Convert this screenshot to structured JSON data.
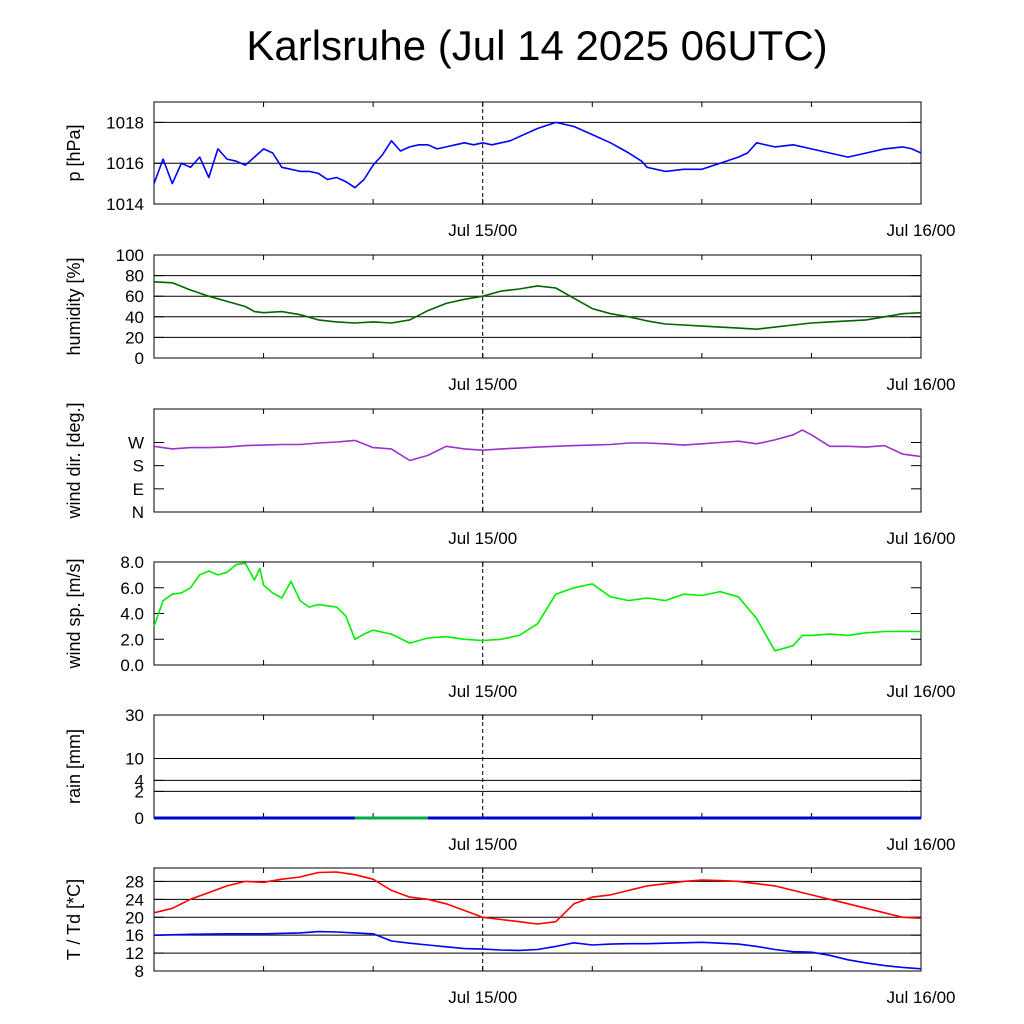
{
  "title": "Karlsruhe (Jul 14 2025 06UTC)",
  "x_axis": {
    "start": "Jul 14 2025 06:00 UTC",
    "end": "Jul 16 2025 00:00 UTC",
    "tick_labels": [
      "Jul 15/00",
      "Jul 16/00"
    ],
    "minor_ticks_hours": 6
  },
  "colors": {
    "pressure": "#0000ff",
    "humidity": "#006400",
    "wind_direction": "#9933cc",
    "wind_speed": "#00ee00",
    "rain": "#0000cc",
    "rain_alt": "#00aa44",
    "temperature": "#ff0000",
    "dewpoint": "#0000ff",
    "gridline": "#000000"
  },
  "chart_data": [
    {
      "type": "line",
      "id": "pressure",
      "ylabel": "p [hPa]",
      "ylim": [
        1014,
        1019
      ],
      "ytick_labels": [
        "1014",
        "1016",
        "1018"
      ],
      "ytick_values": [
        1014,
        1016,
        1018
      ],
      "gridlines": [
        1016,
        1018
      ],
      "series": [
        {
          "color_key": "pressure",
          "x": [
            0,
            0.5,
            1,
            1.5,
            2,
            2.5,
            3,
            3.5,
            4,
            4.5,
            5,
            5.5,
            6,
            6.5,
            7,
            7.5,
            8,
            8.5,
            9,
            9.5,
            10,
            10.5,
            11,
            11.5,
            12,
            12.5,
            13,
            13.5,
            14,
            14.5,
            15,
            15.5,
            16,
            16.5,
            17,
            17.5,
            18,
            18.5,
            19,
            19.5,
            20,
            21,
            22,
            23,
            24,
            25,
            26,
            26.7,
            27,
            28,
            29,
            30,
            31,
            32,
            32.5,
            33,
            34,
            35,
            36,
            37,
            38,
            39,
            40,
            41,
            41.5,
            42
          ],
          "y": [
            1015.0,
            1016.2,
            1015.0,
            1016.0,
            1015.8,
            1016.3,
            1015.3,
            1016.7,
            1016.2,
            1016.1,
            1015.9,
            1016.3,
            1016.7,
            1016.5,
            1015.8,
            1015.7,
            1015.6,
            1015.6,
            1015.5,
            1015.2,
            1015.3,
            1015.1,
            1014.8,
            1015.2,
            1015.9,
            1016.4,
            1017.1,
            1016.6,
            1016.8,
            1016.9,
            1016.9,
            1016.7,
            1016.8,
            1016.9,
            1017.0,
            1016.9,
            1017.0,
            1016.9,
            1017.0,
            1017.1,
            1017.3,
            1017.7,
            1018.0,
            1017.8,
            1017.4,
            1017.0,
            1016.5,
            1016.1,
            1015.8,
            1015.6,
            1015.7,
            1015.7,
            1016.0,
            1016.3,
            1016.5,
            1017.0,
            1016.8,
            1016.9,
            1016.7,
            1016.5,
            1016.3,
            1016.5,
            1016.7,
            1016.8,
            1016.7,
            1016.5
          ]
        }
      ]
    },
    {
      "type": "line",
      "id": "humidity",
      "ylabel": "humidity [%]",
      "ylim": [
        0,
        100
      ],
      "ytick_labels": [
        "0",
        "20",
        "40",
        "60",
        "80",
        "100"
      ],
      "ytick_values": [
        0,
        20,
        40,
        60,
        80,
        100
      ],
      "gridlines": [
        20,
        40,
        60,
        80
      ],
      "series": [
        {
          "color_key": "humidity",
          "x": [
            0,
            1,
            2,
            3,
            4,
            5,
            5.5,
            6,
            7,
            8,
            9,
            10,
            11,
            12,
            13,
            14,
            15,
            16,
            17,
            18,
            19,
            20,
            21,
            22,
            23,
            24,
            25,
            26,
            27,
            28,
            29,
            30,
            31,
            32,
            33,
            34,
            35,
            36,
            37,
            38,
            39,
            40,
            41,
            42
          ],
          "y": [
            74,
            73,
            66,
            60,
            55,
            50,
            45,
            44,
            45,
            42,
            37,
            35,
            34,
            35,
            34,
            37,
            46,
            53,
            57,
            60,
            65,
            67,
            70,
            68,
            58,
            48,
            43,
            40,
            36,
            33,
            32,
            31,
            30,
            29,
            28,
            30,
            32,
            34,
            35,
            36,
            37,
            40,
            43,
            44
          ]
        }
      ]
    },
    {
      "type": "line",
      "id": "wind_direction",
      "ylabel": "wind dir. [deg.]",
      "ylim": [
        0,
        400
      ],
      "ytick_labels": [
        "N",
        "E",
        "S",
        "W"
      ],
      "ytick_values": [
        0,
        90,
        180,
        270
      ],
      "gridlines": [],
      "series": [
        {
          "color_key": "wind_direction",
          "x": [
            0,
            1,
            2,
            3,
            4,
            5,
            6,
            7,
            8,
            9,
            10,
            11,
            12,
            13,
            14,
            15,
            16,
            17,
            18,
            19,
            20,
            21,
            22,
            23,
            24,
            25,
            26,
            27,
            28,
            29,
            30,
            31,
            32,
            33,
            34,
            35,
            35.5,
            36,
            37,
            38,
            39,
            40,
            41,
            42
          ],
          "y": [
            255,
            245,
            250,
            250,
            252,
            258,
            260,
            262,
            262,
            268,
            272,
            278,
            250,
            245,
            200,
            220,
            255,
            245,
            240,
            245,
            248,
            252,
            255,
            258,
            260,
            262,
            268,
            268,
            265,
            260,
            265,
            270,
            275,
            265,
            280,
            300,
            318,
            300,
            255,
            255,
            252,
            258,
            225,
            215
          ]
        }
      ]
    },
    {
      "type": "line",
      "id": "wind_speed",
      "ylabel": "wind sp. [m/s]",
      "ylim": [
        0,
        8
      ],
      "ytick_labels": [
        "0.0",
        "2.0",
        "4.0",
        "6.0",
        "8.0"
      ],
      "ytick_values": [
        0,
        2,
        4,
        6,
        8
      ],
      "gridlines": [],
      "series": [
        {
          "color_key": "wind_speed",
          "x": [
            0,
            0.5,
            1,
            1.5,
            2,
            2.5,
            3,
            3.5,
            4,
            4.5,
            5,
            5.5,
            5.8,
            6,
            6.5,
            7,
            7.5,
            8,
            8.5,
            9,
            9.5,
            10,
            10.5,
            11,
            11.5,
            12,
            13,
            14,
            15,
            16,
            17,
            18,
            19,
            20,
            21,
            22,
            23,
            24,
            25,
            26,
            27,
            28,
            29,
            30,
            31,
            32,
            33,
            34,
            35,
            35.5,
            36,
            37,
            38,
            39,
            40,
            41,
            42
          ],
          "y": [
            3.0,
            5.0,
            5.5,
            5.6,
            6.0,
            7.0,
            7.3,
            7.0,
            7.2,
            7.8,
            7.9,
            6.6,
            7.5,
            6.2,
            5.6,
            5.2,
            6.5,
            5.0,
            4.5,
            4.7,
            4.6,
            4.5,
            3.8,
            2.0,
            2.4,
            2.7,
            2.4,
            1.7,
            2.1,
            2.2,
            2.0,
            1.9,
            2.0,
            2.3,
            3.2,
            5.5,
            6.0,
            6.3,
            5.3,
            5.0,
            5.2,
            5.0,
            5.5,
            5.4,
            5.7,
            5.3,
            3.6,
            1.1,
            1.5,
            2.3,
            2.3,
            2.4,
            2.3,
            2.5,
            2.6,
            2.6,
            2.6
          ]
        }
      ]
    },
    {
      "type": "line",
      "id": "rain",
      "ylabel": "rain [mm]",
      "ylim": [
        0,
        30
      ],
      "ytick_labels": [
        "0",
        "2",
        "4",
        "10",
        "30"
      ],
      "ytick_values": [
        0,
        2,
        4,
        10,
        30
      ],
      "gridlines": [
        2,
        4,
        10,
        30
      ],
      "series": [
        {
          "color_key": "rain",
          "x": [
            0,
            42
          ],
          "y": [
            0,
            0
          ]
        },
        {
          "color_key": "rain_alt",
          "x": [
            11,
            15
          ],
          "y": [
            0,
            0
          ]
        }
      ]
    },
    {
      "type": "line",
      "id": "temperature",
      "ylabel": "T / Td [*C]",
      "ylim": [
        8,
        31
      ],
      "ytick_labels": [
        "8",
        "12",
        "16",
        "20",
        "24",
        "28"
      ],
      "ytick_values": [
        8,
        12,
        16,
        20,
        24,
        28
      ],
      "gridlines": [
        12,
        16,
        20,
        24,
        28
      ],
      "series": [
        {
          "color_key": "temperature",
          "x": [
            0,
            1,
            2,
            3,
            4,
            5,
            6,
            7,
            8,
            9,
            10,
            11,
            12,
            13,
            14,
            15,
            16,
            17,
            18,
            19,
            20,
            21,
            22,
            23,
            24,
            25,
            26,
            27,
            28,
            29,
            30,
            31,
            32,
            33,
            34,
            35,
            36,
            37,
            38,
            39,
            40,
            41,
            42
          ],
          "y": [
            21.0,
            22.0,
            24.0,
            25.5,
            27.0,
            28.0,
            27.8,
            28.5,
            29.0,
            30.0,
            30.1,
            29.5,
            28.5,
            26.0,
            24.5,
            24.0,
            23.0,
            21.5,
            20.0,
            19.5,
            19.0,
            18.5,
            19.0,
            23.0,
            24.5,
            25.0,
            26.0,
            27.0,
            27.5,
            28.0,
            28.3,
            28.2,
            28.0,
            27.5,
            27.0,
            26.0,
            25.0,
            24.0,
            23.0,
            22.0,
            21.0,
            20.0,
            19.8
          ]
        },
        {
          "color_key": "dewpoint",
          "x": [
            0,
            2,
            4,
            6,
            8,
            9,
            10,
            11,
            12,
            13,
            14,
            15,
            16,
            17,
            18,
            19,
            20,
            21,
            22,
            23,
            24,
            25,
            26,
            27,
            28,
            29,
            30,
            31,
            32,
            33,
            34,
            35,
            36,
            37,
            38,
            39,
            40,
            41,
            42
          ],
          "y": [
            16.0,
            16.2,
            16.3,
            16.3,
            16.5,
            16.8,
            16.7,
            16.5,
            16.3,
            14.7,
            14.2,
            13.8,
            13.4,
            13.0,
            12.9,
            12.7,
            12.6,
            12.8,
            13.5,
            14.3,
            13.8,
            14.0,
            14.1,
            14.1,
            14.2,
            14.3,
            14.4,
            14.2,
            14.0,
            13.5,
            12.8,
            12.3,
            12.2,
            11.5,
            10.5,
            9.8,
            9.2,
            8.8,
            8.5
          ]
        }
      ]
    }
  ]
}
